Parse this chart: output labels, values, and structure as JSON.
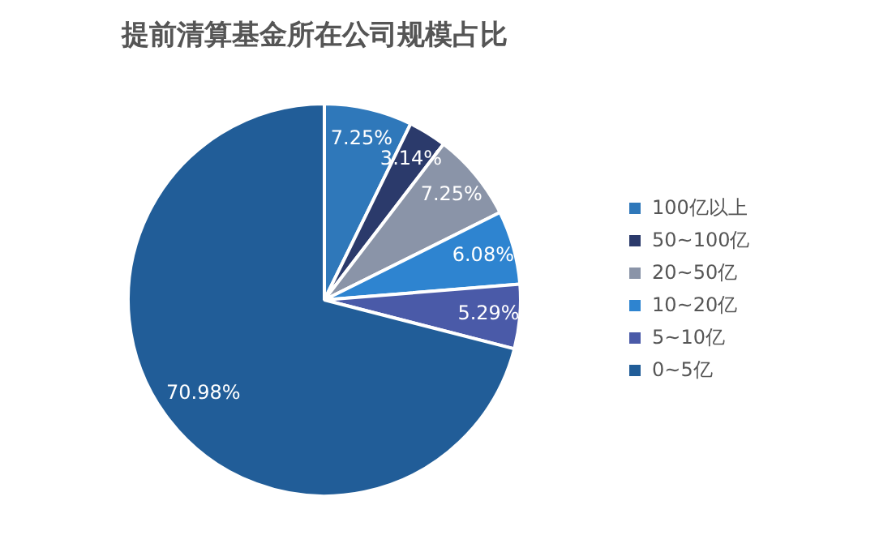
{
  "chart_data": {
    "type": "pie",
    "title": "提前清算基金所在公司规模占比",
    "categories": [
      "100亿以上",
      "50~100亿",
      "20~50亿",
      "10~20亿",
      "5~10亿",
      "0~5亿"
    ],
    "values": [
      7.25,
      3.14,
      7.25,
      6.08,
      5.29,
      70.98
    ],
    "value_labels": [
      "7.25%",
      "3.14%",
      "7.25%",
      "6.08%",
      "5.29%",
      "70.98%"
    ],
    "colors": [
      "#2f78ba",
      "#2b3a6b",
      "#8a94a8",
      "#2e84d0",
      "#4a5aa8",
      "#215d98"
    ],
    "legend": "right"
  }
}
